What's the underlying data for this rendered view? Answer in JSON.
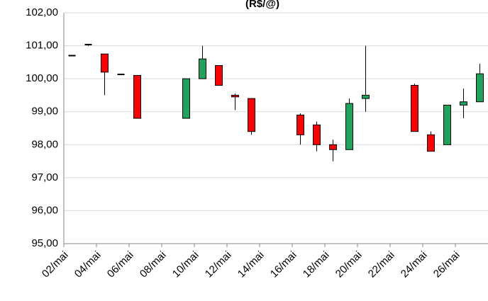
{
  "chart_data": {
    "type": "candlestick",
    "title": "(R$/@)",
    "categories": [
      "02/mai",
      null,
      "04/mai",
      null,
      "06/mai",
      null,
      "08/mai",
      null,
      "10/mai",
      null,
      "12/mai",
      null,
      "14/mai",
      null,
      "16/mai",
      null,
      "18/mai",
      null,
      "20/mai",
      null,
      "22/mai",
      null,
      "24/mai",
      null,
      "26/mai",
      null
    ],
    "open": [
      100.7,
      101.05,
      100.75,
      100.13,
      100.1,
      null,
      null,
      98.8,
      100.0,
      100.4,
      99.5,
      99.4,
      null,
      null,
      98.9,
      98.6,
      98.0,
      97.85,
      99.4,
      null,
      null,
      99.8,
      98.3,
      98.0,
      99.2,
      99.3
    ],
    "high": [
      100.7,
      101.05,
      100.75,
      100.13,
      100.1,
      null,
      null,
      100.0,
      101.0,
      100.4,
      99.55,
      99.4,
      null,
      null,
      98.95,
      98.7,
      98.15,
      99.4,
      101.0,
      null,
      null,
      99.85,
      98.4,
      99.2,
      99.7,
      100.45
    ],
    "low": [
      100.7,
      101.0,
      99.5,
      100.13,
      98.8,
      null,
      null,
      98.8,
      100.0,
      99.8,
      99.05,
      98.3,
      null,
      null,
      98.0,
      97.8,
      97.5,
      97.85,
      99.0,
      null,
      null,
      98.4,
      97.8,
      98.0,
      98.8,
      99.3
    ],
    "close": [
      100.7,
      101.02,
      100.2,
      100.13,
      98.8,
      null,
      null,
      100.0,
      100.6,
      99.8,
      99.45,
      98.4,
      null,
      null,
      98.3,
      98.0,
      97.85,
      99.25,
      99.5,
      null,
      null,
      98.4,
      97.8,
      99.2,
      99.3,
      100.15
    ],
    "up_color": "#1ba45a",
    "down_color": "#ff0000",
    "ylim": [
      95,
      102
    ],
    "yticks": [
      {
        "value": 95,
        "label": "95,00"
      },
      {
        "value": 96,
        "label": "96,00"
      },
      {
        "value": 97,
        "label": "97,00"
      },
      {
        "value": 98,
        "label": "98,00"
      },
      {
        "value": 99,
        "label": "99,00"
      },
      {
        "value": 100,
        "label": "100,00"
      },
      {
        "value": 101,
        "label": "101,00"
      },
      {
        "value": 102,
        "label": "102,00"
      }
    ],
    "grid": true
  }
}
